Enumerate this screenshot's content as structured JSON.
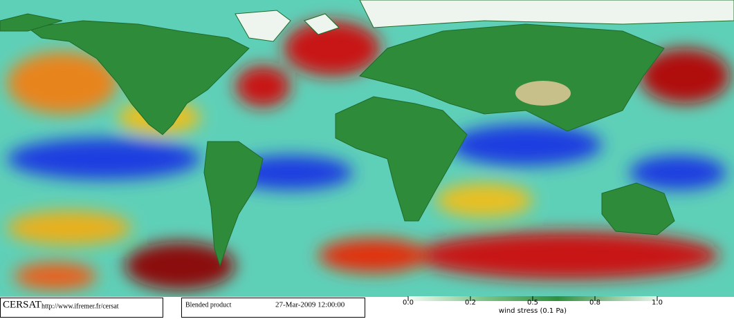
{
  "footer": {
    "brand": "CERSAT",
    "url": "http://www.ifremer.fr/cersat",
    "product": "Blended product",
    "date": "27-Mar-2009 12:00:00"
  },
  "colorbar": {
    "label": "wind stress (0.1 Pa)",
    "ticks": [
      {
        "value": 0,
        "label": "0.0"
      },
      0.2,
      0.5,
      0.8,
      {
        "value": 1,
        "label": "1.0"
      }
    ]
  }
}
